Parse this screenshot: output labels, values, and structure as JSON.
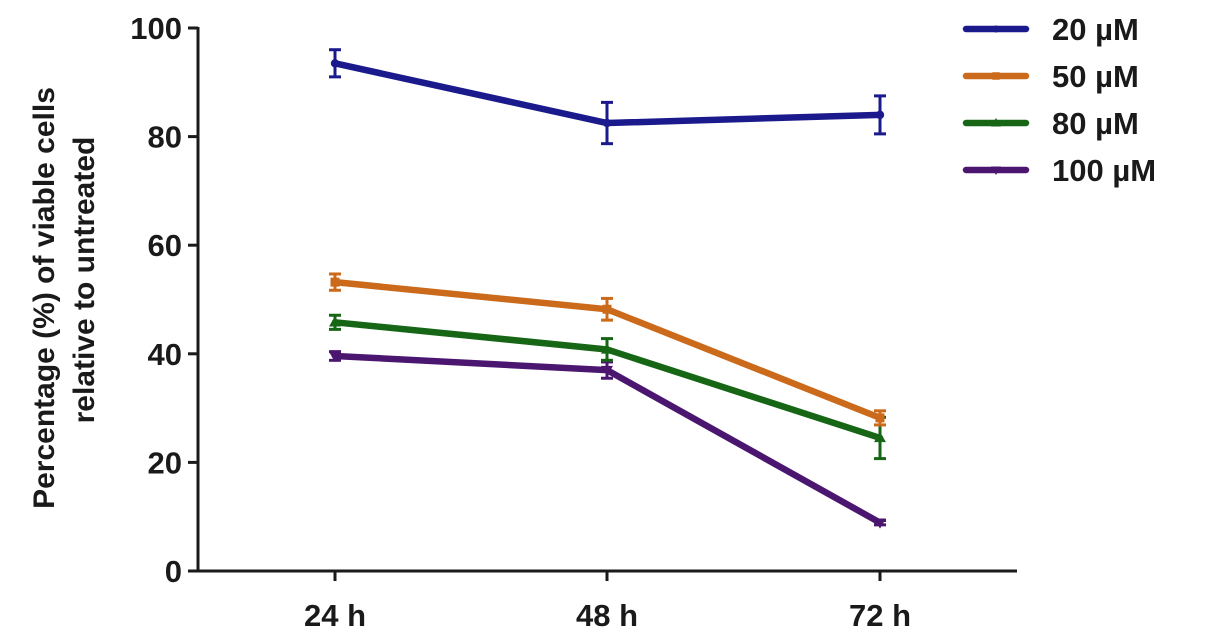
{
  "chart_data": {
    "type": "line",
    "categories": [
      "24 h",
      "48 h",
      "72 h"
    ],
    "ylabel": [
      "Percentage (%) of viable cells",
      "relative to untreated"
    ],
    "xlabel": "",
    "ylim": [
      0,
      100
    ],
    "yticks": [
      0,
      20,
      40,
      60,
      80,
      100
    ],
    "grid": false,
    "legend_position": "top-right",
    "error_bars": true,
    "series": [
      {
        "name": "20 µM",
        "color": "#1a1a8c",
        "marker": "circle",
        "values": [
          93.5,
          82.5,
          84
        ],
        "errors": [
          2.5,
          3.8,
          3.5
        ]
      },
      {
        "name": "50 µM",
        "color": "#cc6a1c",
        "marker": "square",
        "values": [
          53.2,
          48.2,
          28.2
        ],
        "errors": [
          1.5,
          2.0,
          1.3
        ]
      },
      {
        "name": "80 µM",
        "color": "#166616",
        "marker": "triangle-up",
        "values": [
          45.8,
          40.8,
          24.5
        ],
        "errors": [
          1.3,
          2.0,
          3.8
        ]
      },
      {
        "name": "100 µM",
        "color": "#4b1670",
        "marker": "triangle-down",
        "values": [
          39.6,
          37.0,
          8.9
        ],
        "errors": [
          0.8,
          1.5,
          0.4
        ]
      }
    ]
  }
}
